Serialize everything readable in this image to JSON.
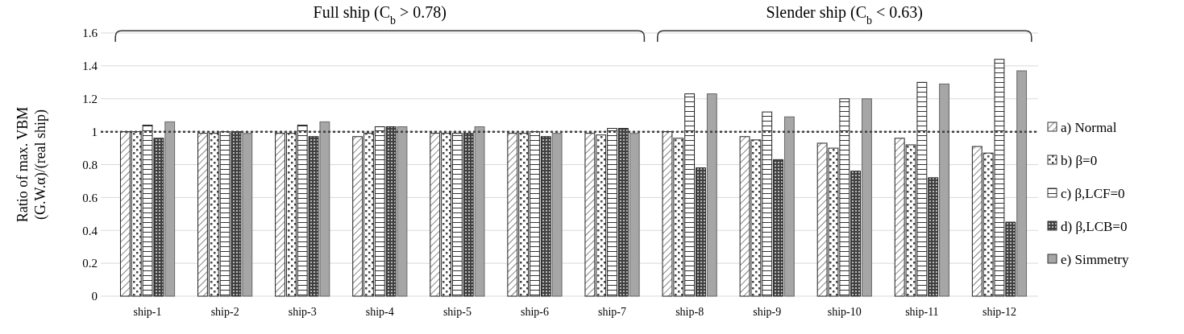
{
  "chart_data": {
    "type": "bar",
    "ylabel": "Ratio of max. VBM\n(G.W.α)/(real ship)",
    "categories": [
      "ship-1",
      "ship-2",
      "ship-3",
      "ship-4",
      "ship-5",
      "ship-6",
      "ship-7",
      "ship-8",
      "ship-9",
      "ship-10",
      "ship-11",
      "ship-12"
    ],
    "series": [
      {
        "name": "a) Normal",
        "color": "#222222",
        "values": [
          1.0,
          0.99,
          0.99,
          0.97,
          0.99,
          0.99,
          0.99,
          1.0,
          0.97,
          0.93,
          0.96,
          0.91
        ]
      },
      {
        "name": "b) β=0",
        "color": "#222222",
        "values": [
          1.0,
          0.99,
          0.99,
          0.99,
          0.99,
          0.99,
          0.98,
          0.96,
          0.95,
          0.9,
          0.92,
          0.87
        ]
      },
      {
        "name": "c) β,LCF=0",
        "color": "#222222",
        "values": [
          1.04,
          1.0,
          1.04,
          1.03,
          0.99,
          1.0,
          1.02,
          1.23,
          1.12,
          1.2,
          1.3,
          1.44
        ]
      },
      {
        "name": "d) β,LCB=0",
        "color": "#222222",
        "values": [
          0.96,
          1.0,
          0.97,
          1.03,
          0.99,
          0.97,
          1.02,
          0.78,
          0.83,
          0.76,
          0.72,
          0.45
        ]
      },
      {
        "name": "e) Simmetry",
        "color": "#a6a6a6",
        "values": [
          1.06,
          0.99,
          1.06,
          1.03,
          1.03,
          0.99,
          0.99,
          1.23,
          1.09,
          1.2,
          1.29,
          1.37
        ]
      }
    ],
    "ylim": [
      0,
      1.6
    ],
    "yticks": [
      0,
      0.2,
      0.4,
      0.6,
      0.8,
      1,
      1.2,
      1.4,
      1.6
    ],
    "grid": "y",
    "legend": "right",
    "ref_lines": [
      {
        "axis": "y",
        "value": 1,
        "color": "#404040",
        "line_style": "dotted"
      }
    ],
    "annotations": [
      "Full ship (C$_{b}$ > 0.78)",
      "Slender ship (C$_{b}$ < 0.63)"
    ]
  }
}
